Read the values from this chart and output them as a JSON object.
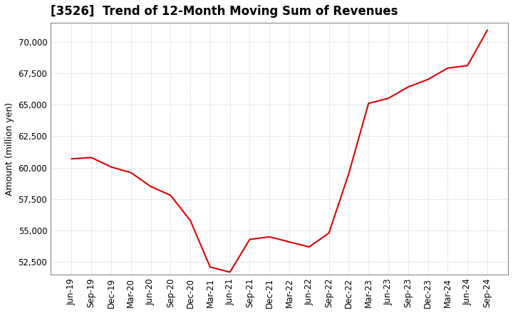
{
  "title": "[3526]  Trend of 12-Month Moving Sum of Revenues",
  "ylabel": "Amount (million yen)",
  "line_color": "#dd0000",
  "background_color": "#ffffff",
  "plot_bg_color": "#ffffff",
  "grid_color": "#bbbbbb",
  "ylim": [
    51500,
    71500
  ],
  "yticks": [
    52500,
    55000,
    57500,
    60000,
    62500,
    65000,
    67500,
    70000
  ],
  "x_labels": [
    "Jun-19",
    "Sep-19",
    "Dec-19",
    "Mar-20",
    "Jun-20",
    "Sep-20",
    "Dec-20",
    "Mar-21",
    "Jun-21",
    "Sep-21",
    "Dec-21",
    "Mar-22",
    "Jun-22",
    "Sep-22",
    "Dec-22",
    "Mar-23",
    "Jun-23",
    "Sep-23",
    "Dec-23",
    "Mar-24",
    "Jun-24",
    "Sep-24"
  ],
  "values": [
    60700,
    60800,
    60050,
    59600,
    58500,
    57800,
    55800,
    52100,
    51700,
    54300,
    54500,
    54100,
    53700,
    54800,
    59500,
    65100,
    65500,
    66400,
    67000,
    67900,
    68100,
    70900
  ],
  "title_fontsize": 12,
  "ylabel_fontsize": 9,
  "tick_fontsize": 8.5
}
